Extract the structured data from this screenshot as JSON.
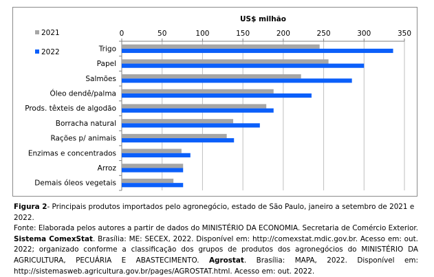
{
  "chart_data": {
    "type": "bar",
    "orientation": "horizontal",
    "title": "US$ milhão",
    "xlim": [
      0,
      350
    ],
    "ticks": [
      0,
      50,
      100,
      150,
      200,
      250,
      300,
      350
    ],
    "axis_position": "top",
    "grid": true,
    "legend_position": "top-left",
    "categories": [
      "Trigo",
      "Papel",
      "Salmões",
      "Óleo dendê/palma",
      "Prods. têxteis de algodão",
      "Borracha natural",
      "Rações p/ animais",
      "Enzimas e concentrados",
      "Arroz",
      "Demais óleos vegetais"
    ],
    "series": [
      {
        "name": "2021",
        "color": "#a6a6a6",
        "values": [
          245,
          256,
          222,
          188,
          179,
          138,
          130,
          74,
          76,
          64
        ]
      },
      {
        "name": "2022",
        "color": "#0b5ffa",
        "values": [
          336,
          300,
          285,
          235,
          188,
          171,
          139,
          85,
          76,
          76
        ]
      }
    ]
  },
  "caption": {
    "figure_label": "Figura 2",
    "figure_text": "- Principais produtos importados pelo agronegócio, estado de São Paulo, janeiro a setembro de 2021 e 2022.",
    "source_text_1": "Fonte: Elaborada pelos autores a partir de dados do MINISTÉRIO DA ECONOMIA. Secretaria de Comércio Exterior. ",
    "source_bold_1": "Sistema ComexStat",
    "source_text_2": ". Brasília: ME: SECEX, 2022. Disponível em: http://comexstat.mdic.gov.br. Acesso em: out. 2022; organizado conforme a classificação dos grupos de produtos dos agronegócios do MINISTÉRIO DA AGRICULTURA, PECUÁRIA E ABASTECIMENTO. ",
    "source_bold_2": "Agrostat",
    "source_text_3": ". Brasília: MAPA, 2022. Disponível em: http://sistemasweb.agricultura.gov.br/pages/AGROSTAT.html. Acesso em: out. 2022."
  }
}
